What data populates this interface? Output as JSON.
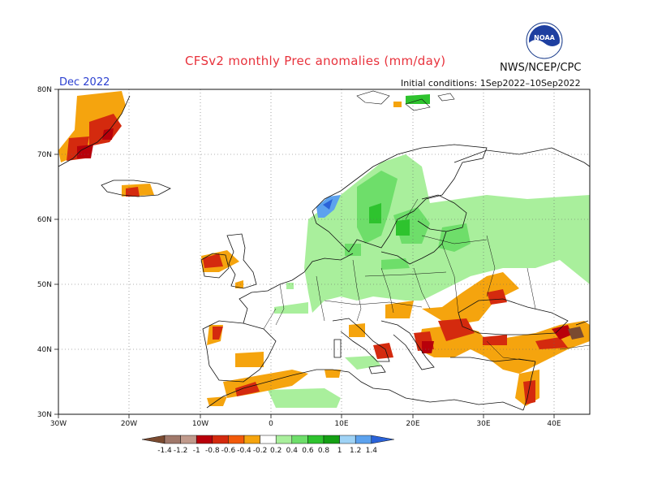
{
  "header": {
    "title": "CFSv2 monthly Prec anomalies (mm/day)",
    "org": "NWS/NCEP/CPC",
    "month": "Dec 2022",
    "init": "Initial conditions: 1Sep2022–10Sep2022",
    "logo_text": "NOAA"
  },
  "axes": {
    "lat_labels": [
      "80N",
      "70N",
      "60N",
      "50N",
      "40N",
      "30N"
    ],
    "lon_labels": [
      "30W",
      "20W",
      "10W",
      "0",
      "10E",
      "20E",
      "30E",
      "40E"
    ]
  },
  "colorbar": {
    "labels": [
      "-1.4",
      "-1.2",
      "-1",
      "-0.8",
      "-0.6",
      "-0.4",
      "-0.2",
      "0.2",
      "0.4",
      "0.6",
      "0.8",
      "1",
      "1.2",
      "1.4"
    ],
    "colors": [
      "#7a4a30",
      "#a0786a",
      "#c09a8c",
      "#b8000a",
      "#d42a0e",
      "#f25a0a",
      "#f5a40e",
      "#ffffff",
      "#a9ef9c",
      "#6ede6a",
      "#2ec32e",
      "#14a014",
      "#9fd3f6",
      "#5ca2ee",
      "#2a62d8"
    ]
  },
  "map": {
    "region": "Europe",
    "lat_range": [
      30,
      80
    ],
    "lon_range": [
      -30,
      45
    ],
    "grid": true
  }
}
